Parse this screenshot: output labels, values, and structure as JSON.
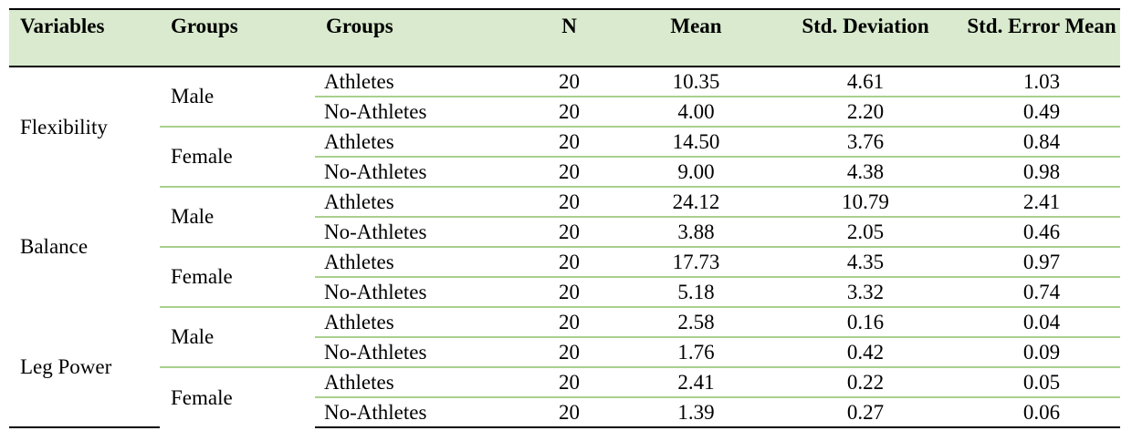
{
  "headers": [
    "Variables",
    "Groups",
    "Groups",
    "N",
    "Mean",
    "Std. Deviation",
    "Std. Error Mean"
  ],
  "variables": [
    {
      "name": "Flexibility",
      "groups": [
        {
          "label": "Male",
          "rows": [
            {
              "group": "Athletes",
              "n": "20",
              "mean": "10.35",
              "sd": "4.61",
              "sem": "1.03"
            },
            {
              "group": "No-Athletes",
              "n": "20",
              "mean": "4.00",
              "sd": "2.20",
              "sem": "0.49"
            }
          ]
        },
        {
          "label": "Female",
          "rows": [
            {
              "group": "Athletes",
              "n": "20",
              "mean": "14.50",
              "sd": "3.76",
              "sem": "0.84"
            },
            {
              "group": "No-Athletes",
              "n": "20",
              "mean": "9.00",
              "sd": "4.38",
              "sem": "0.98"
            }
          ]
        }
      ]
    },
    {
      "name": "Balance",
      "groups": [
        {
          "label": "Male",
          "rows": [
            {
              "group": "Athletes",
              "n": "20",
              "mean": "24.12",
              "sd": "10.79",
              "sem": "2.41"
            },
            {
              "group": "No-Athletes",
              "n": "20",
              "mean": "3.88",
              "sd": "2.05",
              "sem": "0.46"
            }
          ]
        },
        {
          "label": "Female",
          "rows": [
            {
              "group": "Athletes",
              "n": "20",
              "mean": "17.73",
              "sd": "4.35",
              "sem": "0.97"
            },
            {
              "group": "No-Athletes",
              "n": "20",
              "mean": "5.18",
              "sd": "3.32",
              "sem": "0.74"
            }
          ]
        }
      ]
    },
    {
      "name": "Leg Power",
      "groups": [
        {
          "label": "Male",
          "rows": [
            {
              "group": "Athletes",
              "n": "20",
              "mean": "2.58",
              "sd": "0.16",
              "sem": "0.04"
            },
            {
              "group": "No-Athletes",
              "n": "20",
              "mean": "1.76",
              "sd": "0.42",
              "sem": "0.09"
            }
          ]
        },
        {
          "label": "Female",
          "rows": [
            {
              "group": "Athletes",
              "n": "20",
              "mean": "2.41",
              "sd": "0.22",
              "sem": "0.05"
            },
            {
              "group": "No-Athletes",
              "n": "20",
              "mean": "1.39",
              "sd": "0.27",
              "sem": "0.06"
            }
          ]
        }
      ]
    }
  ],
  "colors": {
    "header_bg": "#d9eace",
    "row_rule": "#a9d08e",
    "border": "#000000"
  }
}
